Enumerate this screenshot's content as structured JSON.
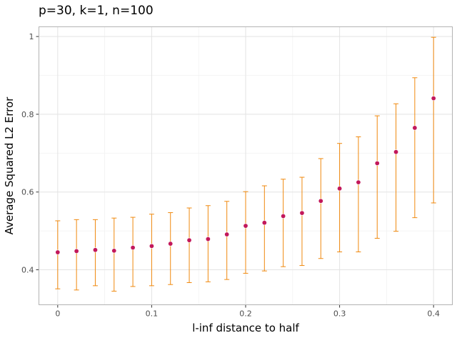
{
  "chart_data": {
    "type": "scatter",
    "title": "p=30, k=1, n=100",
    "xlabel": "l-inf distance to half",
    "ylabel": "Average Squared L2 Error",
    "xlim": [
      -0.02,
      0.42
    ],
    "ylim": [
      0.31,
      1.025
    ],
    "x_ticks": [
      0,
      0.1,
      0.2,
      0.3,
      0.4
    ],
    "x_tick_labels": [
      "0",
      "0.1",
      "0.2",
      "0.3",
      "0.4"
    ],
    "y_ticks": [
      0.4,
      0.6,
      0.8,
      1.0
    ],
    "y_tick_labels": [
      "0.4",
      "0.6",
      "0.8",
      "1"
    ],
    "grid": true,
    "series": [
      {
        "x": [
          0,
          0.02,
          0.04,
          0.06,
          0.08,
          0.1,
          0.12,
          0.14,
          0.16,
          0.18,
          0.2,
          0.22,
          0.24,
          0.26,
          0.28,
          0.3,
          0.32,
          0.34,
          0.36,
          0.38,
          0.4
        ],
        "y": [
          0.445,
          0.448,
          0.451,
          0.449,
          0.457,
          0.461,
          0.467,
          0.476,
          0.479,
          0.491,
          0.513,
          0.521,
          0.538,
          0.546,
          0.577,
          0.609,
          0.625,
          0.674,
          0.703,
          0.765,
          0.841
        ],
        "lower": [
          0.351,
          0.348,
          0.359,
          0.345,
          0.357,
          0.359,
          0.362,
          0.367,
          0.369,
          0.375,
          0.391,
          0.397,
          0.408,
          0.411,
          0.429,
          0.446,
          0.446,
          0.481,
          0.499,
          0.534,
          0.572
        ],
        "upper": [
          0.526,
          0.529,
          0.529,
          0.533,
          0.535,
          0.543,
          0.547,
          0.559,
          0.565,
          0.576,
          0.601,
          0.616,
          0.633,
          0.638,
          0.686,
          0.725,
          0.742,
          0.796,
          0.827,
          0.894,
          0.998
        ]
      }
    ],
    "colors": {
      "point": "#c2185b",
      "errorbar": "#f0890e",
      "grid_major": "#e3e3e3",
      "grid_minor": "#f2f2f2",
      "panel_border": "#b3b3b3"
    }
  }
}
